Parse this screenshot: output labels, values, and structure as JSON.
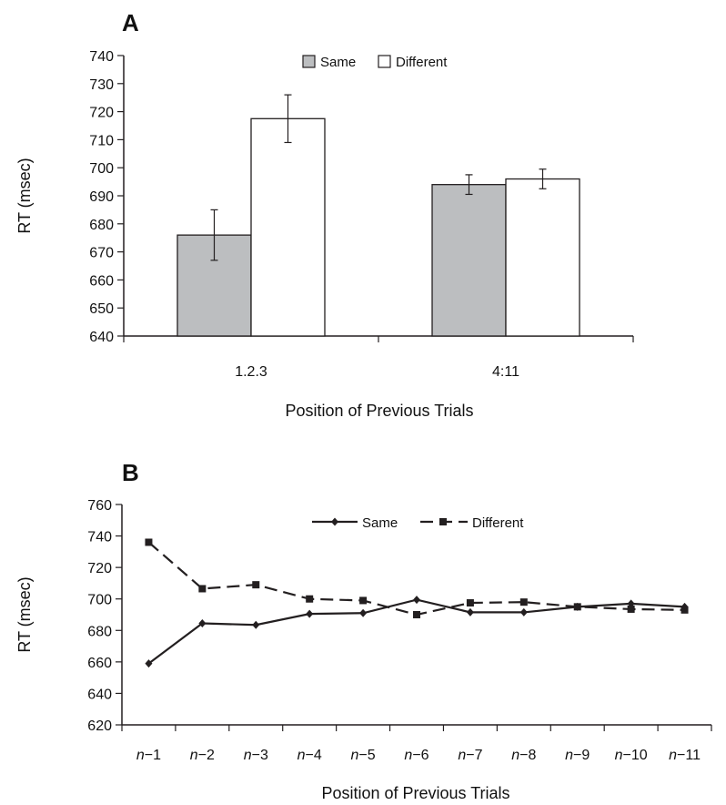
{
  "chart_data": [
    {
      "panel": "A",
      "type": "bar",
      "xlabel": "Position of Previous Trials",
      "ylabel": "RT (msec)",
      "ylim": [
        640,
        740
      ],
      "yticks": [
        640,
        650,
        660,
        670,
        680,
        690,
        700,
        710,
        720,
        730,
        740
      ],
      "categories": [
        "1.2.3",
        "4:11"
      ],
      "legend_position": "top-center",
      "series": [
        {
          "name": "Same",
          "values": [
            676,
            694
          ],
          "errors": [
            9,
            3.5
          ],
          "color": "#bcbec0"
        },
        {
          "name": "Different",
          "values": [
            717.5,
            696
          ],
          "errors": [
            8.5,
            3.5
          ],
          "color": "#ffffff"
        }
      ]
    },
    {
      "panel": "B",
      "type": "line",
      "xlabel": "Position of Previous Trials",
      "ylabel": "RT (msec)",
      "ylim": [
        620,
        760
      ],
      "yticks": [
        620,
        640,
        660,
        680,
        700,
        720,
        740,
        760
      ],
      "categories": [
        {
          "n": "n",
          "op": "−",
          "k": "1"
        },
        {
          "n": "n",
          "op": "−",
          "k": "2"
        },
        {
          "n": "n",
          "op": "−",
          "k": "3"
        },
        {
          "n": "n",
          "op": "−",
          "k": "4"
        },
        {
          "n": "n",
          "op": "−",
          "k": "5"
        },
        {
          "n": "n",
          "op": "−",
          "k": "6"
        },
        {
          "n": "n",
          "op": "−",
          "k": "7"
        },
        {
          "n": "n",
          "op": "−",
          "k": "8"
        },
        {
          "n": "n",
          "op": "−",
          "k": "9"
        },
        {
          "n": "n",
          "op": "−",
          "k": "10"
        },
        {
          "n": "n",
          "op": "−",
          "k": "11"
        }
      ],
      "legend_position": "top-center",
      "series": [
        {
          "name": "Same",
          "style": "solid",
          "marker": "diamond",
          "values": [
            659,
            684.5,
            683.5,
            690.5,
            691,
            699.5,
            691.5,
            691.5,
            695,
            697,
            695
          ]
        },
        {
          "name": "Different",
          "style": "dashed",
          "marker": "square",
          "values": [
            736,
            706.5,
            709,
            700,
            699,
            690,
            697.5,
            698,
            695,
            693.5,
            693
          ]
        }
      ]
    }
  ]
}
